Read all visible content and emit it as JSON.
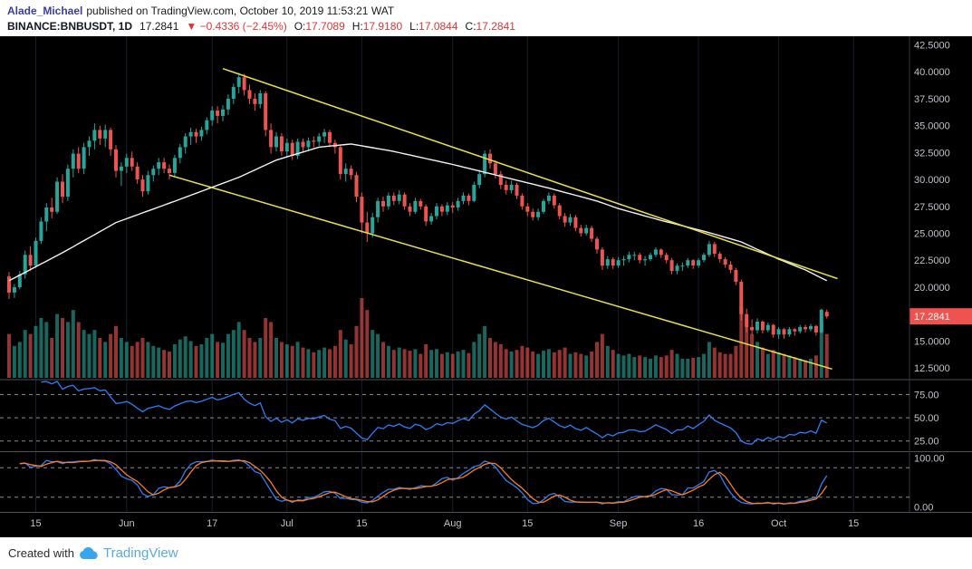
{
  "header": {
    "author": "Alade_Michael",
    "published": "published on TradingView.com, October 10, 2019 11:53:21 WAT"
  },
  "symbol_bar": {
    "symbol_interval": "BINANCE:BNBUSDT, 1D",
    "last_price": "17.2841",
    "change": "▼ −0.4336 (−2.45%)",
    "ohlc": [
      {
        "label": "O:",
        "value": "17.7089"
      },
      {
        "label": "H:",
        "value": "17.9180"
      },
      {
        "label": "L:",
        "value": "17.0844"
      },
      {
        "label": "C:",
        "value": "17.2841"
      }
    ]
  },
  "footer": {
    "created_with": "Created with",
    "brand": "TradingView"
  },
  "colors": {
    "author_link": "#3c3ca8",
    "header_red": "#df3434",
    "brand_blue": "#37a6ef",
    "brand_text": "#57abde"
  },
  "chart_data": {
    "type": "candlestick",
    "title": "BINANCE:BNBUSDT 1D",
    "y_axis": {
      "labels": [
        "42.5000",
        "40.0000",
        "37.5000",
        "35.0000",
        "32.5000",
        "30.0000",
        "27.5000",
        "25.0000",
        "22.5000",
        "20.0000",
        "17.5000",
        "15.0000",
        "12.5000"
      ],
      "range": [
        11.5,
        43.3
      ],
      "last_price": 17.2841,
      "last_price_label": "17.2841"
    },
    "x_axis": {
      "ticks": [
        {
          "label": "15",
          "i": 5
        },
        {
          "label": "Jun",
          "i": 22
        },
        {
          "label": "17",
          "i": 38
        },
        {
          "label": "Jul",
          "i": 52
        },
        {
          "label": "15",
          "i": 66
        },
        {
          "label": "Aug",
          "i": 83
        },
        {
          "label": "15",
          "i": 97
        },
        {
          "label": "Sep",
          "i": 114
        },
        {
          "label": "16",
          "i": 129
        },
        {
          "label": "Oct",
          "i": 144
        },
        {
          "label": "15",
          "i": 158
        }
      ]
    },
    "candles": [
      [
        21,
        21.4,
        18.9,
        19.5
      ],
      [
        19.5,
        20.3,
        19,
        20
      ],
      [
        20,
        21.5,
        19.8,
        21.2
      ],
      [
        21.2,
        23.4,
        20.8,
        23
      ],
      [
        23,
        23.8,
        21.5,
        22
      ],
      [
        22,
        24.6,
        21.8,
        24.3
      ],
      [
        24.3,
        26.5,
        24,
        26.1
      ],
      [
        26.1,
        27.8,
        25.2,
        27.4
      ],
      [
        27.4,
        28.3,
        26.4,
        27
      ],
      [
        27,
        30.2,
        26.8,
        29.8
      ],
      [
        29.8,
        30.5,
        27.8,
        28.4
      ],
      [
        28.4,
        31.4,
        28,
        31
      ],
      [
        31,
        32.8,
        30.2,
        32.4
      ],
      [
        32.4,
        33,
        30.6,
        31
      ],
      [
        31,
        33.4,
        30.5,
        33
      ],
      [
        33,
        34,
        32.2,
        33.6
      ],
      [
        33.6,
        35.2,
        32.8,
        34.6
      ],
      [
        34.6,
        35,
        33.2,
        33.8
      ],
      [
        33.8,
        35.1,
        33,
        34.6
      ],
      [
        34.6,
        34.8,
        32.2,
        32.8
      ],
      [
        32.8,
        33.2,
        30.2,
        30.8
      ],
      [
        30.8,
        31.6,
        29.4,
        31.2
      ],
      [
        31.2,
        32.4,
        30.6,
        32
      ],
      [
        32,
        32.6,
        30.8,
        31.2
      ],
      [
        31.2,
        31.6,
        29.6,
        30
      ],
      [
        30,
        30.4,
        28.4,
        28.9
      ],
      [
        28.9,
        30.8,
        28.6,
        30.4
      ],
      [
        30.4,
        31.3,
        29.8,
        31
      ],
      [
        31,
        32,
        30.4,
        31.6
      ],
      [
        31.6,
        32,
        30.6,
        31
      ],
      [
        31,
        31.4,
        30,
        30.6
      ],
      [
        30.6,
        32.3,
        30.2,
        32
      ],
      [
        32,
        33.3,
        31.5,
        33
      ],
      [
        33,
        34.3,
        32.4,
        34
      ],
      [
        34,
        34.8,
        33.2,
        34.4
      ],
      [
        34.4,
        34.7,
        33.4,
        34
      ],
      [
        34,
        34.9,
        33.6,
        34.6
      ],
      [
        34.6,
        35.8,
        34.2,
        35.5
      ],
      [
        35.5,
        36.8,
        35,
        36.4
      ],
      [
        36.4,
        36.8,
        35.2,
        35.9
      ],
      [
        35.9,
        36.9,
        35.4,
        36.5
      ],
      [
        36.5,
        37.9,
        36,
        37.5
      ],
      [
        37.5,
        38.9,
        37,
        38.6
      ],
      [
        38.6,
        39.9,
        38,
        39.5
      ],
      [
        39.5,
        39.8,
        37.8,
        38.3
      ],
      [
        38.3,
        38.8,
        37,
        37.5
      ],
      [
        37.5,
        38,
        36.4,
        37
      ],
      [
        37,
        38.3,
        36.6,
        38
      ],
      [
        38,
        38.2,
        34,
        34.6
      ],
      [
        34.6,
        35.2,
        32.4,
        33
      ],
      [
        33,
        34.4,
        32.6,
        34
      ],
      [
        34,
        34.3,
        32.2,
        32.6
      ],
      [
        32.6,
        33.8,
        32,
        33.4
      ],
      [
        33.4,
        33.7,
        31.8,
        32.2
      ],
      [
        32.2,
        33.8,
        31.9,
        33.5
      ],
      [
        33.5,
        33.8,
        32.6,
        33
      ],
      [
        33,
        33.9,
        32.6,
        33.6
      ],
      [
        33.6,
        34,
        33,
        33.5
      ],
      [
        33.5,
        34.3,
        33.1,
        34
      ],
      [
        34,
        34.7,
        33.4,
        34.4
      ],
      [
        34.4,
        34.6,
        33,
        33.4
      ],
      [
        33.4,
        33.7,
        32.4,
        33
      ],
      [
        33,
        33.2,
        30,
        30.5
      ],
      [
        30.5,
        31.5,
        29.8,
        31
      ],
      [
        31,
        31.3,
        30,
        30.4
      ],
      [
        30.4,
        30.7,
        27.9,
        28.4
      ],
      [
        28.4,
        28.8,
        25,
        26
      ],
      [
        26,
        27,
        24.2,
        25
      ],
      [
        25,
        26.9,
        24.6,
        26.5
      ],
      [
        26.5,
        28.3,
        26,
        28
      ],
      [
        28,
        28.4,
        27,
        27.5
      ],
      [
        27.5,
        28.8,
        27.2,
        28.5
      ],
      [
        28.5,
        28.8,
        27.6,
        28
      ],
      [
        28,
        29,
        27.7,
        28.6
      ],
      [
        28.6,
        28.8,
        27.2,
        27.5
      ],
      [
        27.5,
        27.8,
        26.6,
        27
      ],
      [
        27,
        28.3,
        26.8,
        28
      ],
      [
        28,
        28.2,
        27.2,
        27.5
      ],
      [
        27.5,
        27.7,
        25.7,
        26.1
      ],
      [
        26.1,
        26.9,
        25.8,
        26.6
      ],
      [
        26.6,
        27.8,
        26.3,
        27.5
      ],
      [
        27.5,
        27.7,
        26.6,
        27
      ],
      [
        27,
        27.9,
        26.7,
        27.6
      ],
      [
        27.6,
        27.9,
        26.9,
        27.4
      ],
      [
        27.4,
        28.3,
        27.1,
        28
      ],
      [
        28,
        28.8,
        27.7,
        28.5
      ],
      [
        28.5,
        28.7,
        27.6,
        28
      ],
      [
        28,
        29.8,
        27.9,
        29.5
      ],
      [
        29.5,
        30.9,
        29.2,
        30.5
      ],
      [
        30.5,
        32.7,
        30.2,
        32.4
      ],
      [
        32.4,
        32.8,
        31,
        31.5
      ],
      [
        31.5,
        31.8,
        30.1,
        30.5
      ],
      [
        30.5,
        30.8,
        29.1,
        29.5
      ],
      [
        29.5,
        29.9,
        28.6,
        29
      ],
      [
        29,
        29.9,
        28.7,
        29.5
      ],
      [
        29.5,
        29.7,
        28.2,
        28.5
      ],
      [
        28.5,
        28.7,
        27.2,
        27.5
      ],
      [
        27.5,
        27.8,
        26.6,
        27
      ],
      [
        27,
        27.3,
        26.2,
        26.5
      ],
      [
        26.5,
        27.3,
        26.2,
        27
      ],
      [
        27,
        28.2,
        26.8,
        28
      ],
      [
        28,
        28.8,
        27.7,
        28.5
      ],
      [
        28.5,
        28.7,
        27.3,
        27.6
      ],
      [
        27.6,
        27.8,
        26.3,
        26.6
      ],
      [
        26.6,
        26.9,
        25.6,
        26
      ],
      [
        26,
        26.8,
        25.7,
        26.5
      ],
      [
        26.5,
        26.7,
        25.2,
        25.5
      ],
      [
        25.5,
        25.8,
        24.7,
        25
      ],
      [
        25,
        25.8,
        24.8,
        25.5
      ],
      [
        25.5,
        25.7,
        24.2,
        24.5
      ],
      [
        24.5,
        24.7,
        23.1,
        23.5
      ],
      [
        23.5,
        23.7,
        21.6,
        22
      ],
      [
        22,
        22.9,
        21.7,
        22.6
      ],
      [
        22.6,
        22.8,
        21.7,
        22
      ],
      [
        22,
        22.8,
        21.8,
        22.5
      ],
      [
        22.5,
        22.9,
        22,
        22.6
      ],
      [
        22.6,
        23.3,
        22.3,
        23
      ],
      [
        23,
        23.3,
        22.5,
        23
      ],
      [
        23,
        23.2,
        22.2,
        22.5
      ],
      [
        22.5,
        22.9,
        22,
        22.6
      ],
      [
        22.6,
        23.2,
        22.4,
        23
      ],
      [
        23,
        23.7,
        22.8,
        23.5
      ],
      [
        23.5,
        23.6,
        22.7,
        23
      ],
      [
        23,
        23.2,
        22.2,
        22.5
      ],
      [
        22.5,
        22.7,
        21.2,
        21.5
      ],
      [
        21.5,
        22.2,
        21.2,
        22
      ],
      [
        22,
        22.3,
        21.5,
        22
      ],
      [
        22,
        22.7,
        21.8,
        22.5
      ],
      [
        22.5,
        22.6,
        21.7,
        22
      ],
      [
        22,
        22.7,
        21.8,
        22.5
      ],
      [
        22.5,
        23.2,
        22.3,
        23
      ],
      [
        23,
        24.3,
        22.8,
        24
      ],
      [
        24,
        24.2,
        22.8,
        23.1
      ],
      [
        23.1,
        23.3,
        22.3,
        22.6
      ],
      [
        22.6,
        22.8,
        21.8,
        22.1
      ],
      [
        22.1,
        22.4,
        21.3,
        21.6
      ],
      [
        21.6,
        21.8,
        20.2,
        20.5
      ],
      [
        20.5,
        20.7,
        16.9,
        17.5
      ],
      [
        17.5,
        18,
        15.8,
        16.3
      ],
      [
        16.3,
        17,
        15.6,
        16
      ],
      [
        16,
        17.1,
        15.7,
        16.8
      ],
      [
        16.8,
        16.9,
        15.7,
        16
      ],
      [
        16,
        16.7,
        15.8,
        16.5
      ],
      [
        16.5,
        16.6,
        15.3,
        15.6
      ],
      [
        15.6,
        16.3,
        15.2,
        16.1
      ],
      [
        16.1,
        16.2,
        15.2,
        15.6
      ],
      [
        15.6,
        16.3,
        15.4,
        16.1
      ],
      [
        16.1,
        16.2,
        15.5,
        15.9
      ],
      [
        15.9,
        16.5,
        15.7,
        16.3
      ],
      [
        16.3,
        16.5,
        15.8,
        16.1
      ],
      [
        16.1,
        16.6,
        15.9,
        16.4
      ],
      [
        16.4,
        16.5,
        15.5,
        15.8
      ],
      [
        15.8,
        18,
        15.7,
        17.9
      ],
      [
        17.7089,
        17.918,
        17.0844,
        17.2841
      ]
    ],
    "volume": [
      55,
      40,
      45,
      60,
      55,
      65,
      75,
      70,
      50,
      80,
      75,
      70,
      85,
      70,
      60,
      55,
      60,
      50,
      45,
      55,
      65,
      50,
      45,
      40,
      45,
      50,
      45,
      40,
      38,
      35,
      33,
      42,
      48,
      52,
      46,
      40,
      42,
      50,
      55,
      45,
      44,
      55,
      60,
      70,
      60,
      50,
      45,
      50,
      75,
      70,
      50,
      45,
      42,
      40,
      45,
      38,
      36,
      32,
      35,
      38,
      36,
      40,
      60,
      48,
      42,
      65,
      100,
      85,
      60,
      55,
      45,
      40,
      35,
      38,
      36,
      34,
      36,
      30,
      42,
      35,
      36,
      30,
      32,
      30,
      33,
      35,
      31,
      45,
      55,
      65,
      50,
      45,
      42,
      36,
      33,
      35,
      40,
      38,
      33,
      30,
      34,
      36,
      32,
      35,
      38,
      30,
      32,
      30,
      28,
      33,
      45,
      55,
      40,
      35,
      30,
      28,
      30,
      26,
      28,
      26,
      24,
      28,
      26,
      28,
      35,
      30,
      24,
      24,
      25,
      26,
      30,
      45,
      38,
      32,
      30,
      30,
      40,
      90,
      75,
      55,
      45,
      38,
      30,
      35,
      32,
      30,
      28,
      26,
      24,
      22,
      24,
      28,
      70,
      55
    ],
    "overlays": {
      "ma": {
        "name": "white-moving-average",
        "points": [
          {
            "i": 0,
            "v": 20.6
          },
          {
            "i": 10,
            "v": 23.2
          },
          {
            "i": 20,
            "v": 26.0
          },
          {
            "i": 30,
            "v": 27.8
          },
          {
            "i": 43,
            "v": 30.2
          },
          {
            "i": 50,
            "v": 31.8
          },
          {
            "i": 58,
            "v": 33.0
          },
          {
            "i": 64,
            "v": 33.3
          },
          {
            "i": 72,
            "v": 32.6
          },
          {
            "i": 83,
            "v": 31.4
          },
          {
            "i": 92,
            "v": 30.3
          },
          {
            "i": 101,
            "v": 29.2
          },
          {
            "i": 110,
            "v": 28.0
          },
          {
            "i": 114,
            "v": 27.3
          },
          {
            "i": 122,
            "v": 26.2
          },
          {
            "i": 130,
            "v": 25.2
          },
          {
            "i": 137,
            "v": 24.2
          },
          {
            "i": 144,
            "v": 22.6
          },
          {
            "i": 149,
            "v": 21.6
          },
          {
            "i": 153,
            "v": 20.6
          }
        ]
      },
      "trendlines": [
        {
          "name": "upper-channel-line",
          "i1": 40,
          "p1": 40.3,
          "i2": 155,
          "p2": 20.8
        },
        {
          "name": "lower-channel-line",
          "i1": 30,
          "p1": 30.4,
          "i2": 154,
          "p2": 12.4
        }
      ]
    },
    "indicators": [
      {
        "name": "RSI",
        "period": 14,
        "levels": [
          75,
          50,
          25
        ],
        "axis_labels": [
          "75.00",
          "50.00",
          "25.00"
        ],
        "range": [
          15,
          90
        ]
      },
      {
        "name": "Stochastic",
        "k": 14,
        "smooth": 3,
        "d": 3,
        "levels": [
          80,
          20
        ],
        "axis_labels": [
          {
            "v": 100,
            "t": "100.00"
          },
          {
            "v": 0,
            "t": "0.00"
          }
        ],
        "range": [
          -10,
          110
        ]
      }
    ],
    "colors": {
      "up": "#26a69a",
      "down": "#ef5350",
      "ma": "#f2f2f2",
      "trendline": "#e8e04a",
      "rsi": "#2d7ff9",
      "stoch_k": "#2d7ff9",
      "stoch_d": "#ff7c1f",
      "price_tag_bg": "#ef5350",
      "axis_text": "#c0c3ca"
    }
  }
}
